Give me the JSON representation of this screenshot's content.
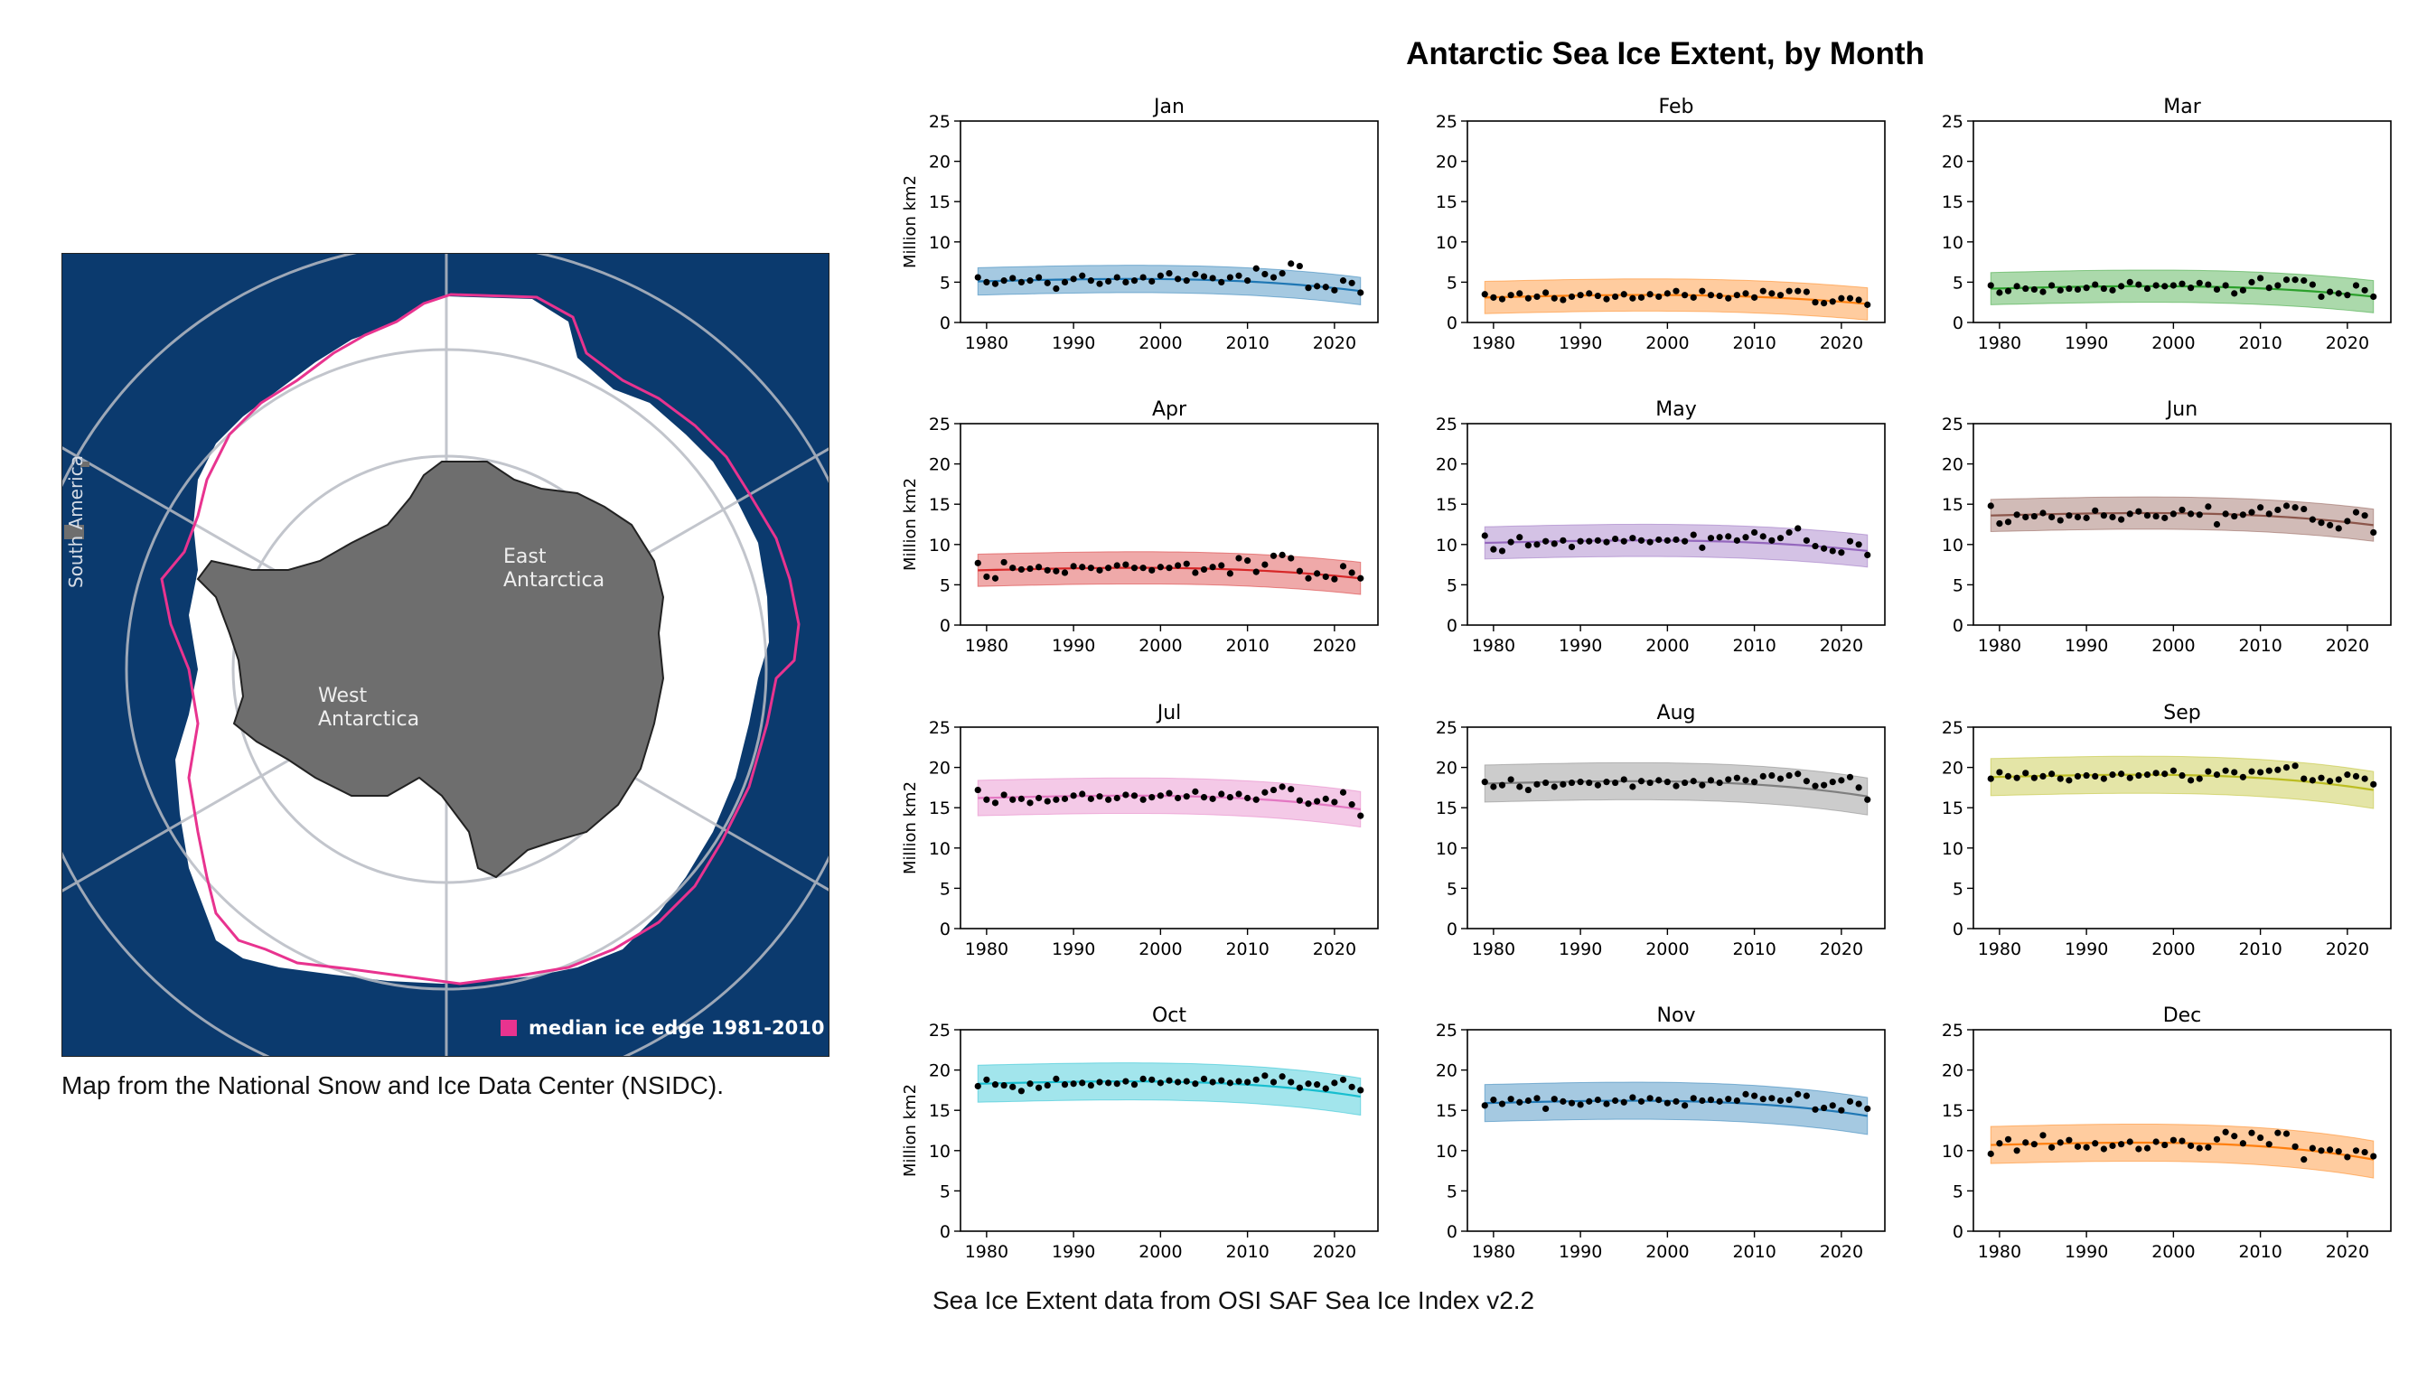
{
  "figure": {
    "title": "Antarctic Sea Ice Extent, by Month",
    "source_caption": "Sea Ice Extent data from OSI SAF Sea Ice Index v2.2"
  },
  "map": {
    "caption": "Map from the National Snow and Ice Data Center (NSIDC).",
    "labels": {
      "south_america": "South America",
      "east_1": "East",
      "east_2": "Antarctica",
      "west_1": "West",
      "west_2": "Antarctica"
    },
    "legend": "median ice edge 1981-2010",
    "colors": {
      "ocean": "#0b3a6e",
      "ice": "#ffffff",
      "land": "#6e6e6e",
      "median_edge": "#e8338f",
      "grid": "#b8bcc4"
    }
  },
  "chart_data": {
    "type": "scatter",
    "layout": "4x3 small multiples with trend line and shaded band",
    "ylabel": "Million km2",
    "ylim": [
      0,
      25
    ],
    "yticks": [
      0,
      5,
      10,
      15,
      20,
      25
    ],
    "xlim": [
      1977,
      2025
    ],
    "xticks": [
      1980,
      1990,
      2000,
      2010,
      2020
    ],
    "x_start": 1979,
    "x_end": 2023,
    "panels": [
      {
        "month": "Jan",
        "color": "#1f77b4",
        "base": 5.1,
        "band": 1.7,
        "endDrop": 1.2,
        "values": [
          5.6,
          5.0,
          4.8,
          5.2,
          5.5,
          5.0,
          5.2,
          5.6,
          4.9,
          4.2,
          5.0,
          5.4,
          5.8,
          5.2,
          4.8,
          5.1,
          5.6,
          5.0,
          5.2,
          5.6,
          5.1,
          5.8,
          6.1,
          5.4,
          5.2,
          6.0,
          5.7,
          5.5,
          5.0,
          5.6,
          5.8,
          5.2,
          6.7,
          6.0,
          5.6,
          6.1,
          7.3,
          7.0,
          4.3,
          4.5,
          4.4,
          4.0,
          5.2,
          4.9,
          3.7
        ]
      },
      {
        "month": "Feb",
        "color": "#ff7f0e",
        "base": 3.1,
        "band": 2.0,
        "endDrop": 0.8,
        "values": [
          3.5,
          3.1,
          2.9,
          3.4,
          3.6,
          3.0,
          3.2,
          3.7,
          3.0,
          2.8,
          3.2,
          3.4,
          3.6,
          3.3,
          2.9,
          3.2,
          3.5,
          3.0,
          3.1,
          3.5,
          3.2,
          3.6,
          3.9,
          3.4,
          3.1,
          3.9,
          3.4,
          3.3,
          3.0,
          3.4,
          3.6,
          3.1,
          3.9,
          3.6,
          3.4,
          3.9,
          3.9,
          3.8,
          2.5,
          2.4,
          2.6,
          3.0,
          3.0,
          2.8,
          2.2
        ]
      },
      {
        "month": "Mar",
        "color": "#2ca02c",
        "base": 4.2,
        "band": 2.0,
        "endDrop": 1.0,
        "values": [
          4.6,
          3.7,
          3.9,
          4.5,
          4.2,
          4.1,
          3.8,
          4.6,
          4.0,
          4.2,
          4.1,
          4.3,
          4.7,
          4.2,
          4.0,
          4.5,
          5.0,
          4.7,
          4.2,
          4.6,
          4.5,
          4.6,
          4.8,
          4.3,
          4.9,
          4.7,
          4.1,
          4.6,
          3.6,
          4.0,
          5.0,
          5.5,
          4.3,
          4.6,
          5.3,
          5.3,
          5.2,
          4.7,
          3.2,
          3.8,
          3.6,
          3.4,
          4.6,
          4.0,
          3.2
        ]
      },
      {
        "month": "Apr",
        "color": "#d62728",
        "base": 6.8,
        "band": 2.0,
        "endDrop": 1.0,
        "values": [
          7.7,
          6.0,
          5.8,
          7.8,
          7.1,
          6.9,
          7.0,
          7.2,
          6.8,
          6.7,
          6.5,
          7.3,
          7.2,
          7.1,
          6.8,
          7.1,
          7.4,
          7.5,
          7.1,
          7.1,
          6.8,
          7.2,
          7.1,
          7.4,
          7.6,
          6.5,
          6.9,
          7.2,
          7.4,
          6.4,
          8.3,
          8.0,
          6.6,
          7.5,
          8.6,
          8.7,
          8.3,
          6.7,
          5.8,
          6.4,
          6.0,
          5.7,
          7.3,
          6.5,
          5.8
        ]
      },
      {
        "month": "May",
        "color": "#9467bd",
        "base": 10.2,
        "band": 2.0,
        "endDrop": 1.0,
        "values": [
          11.1,
          9.4,
          9.2,
          10.3,
          10.9,
          9.9,
          10.0,
          10.4,
          10.1,
          10.5,
          9.7,
          10.4,
          10.4,
          10.5,
          10.3,
          10.7,
          10.4,
          10.8,
          10.5,
          10.3,
          10.6,
          10.5,
          10.6,
          10.4,
          11.2,
          9.6,
          10.8,
          10.9,
          11.0,
          10.5,
          10.9,
          11.5,
          11.0,
          10.5,
          10.8,
          11.5,
          12.0,
          10.5,
          9.8,
          9.5,
          9.2,
          9.0,
          10.4,
          10.0,
          8.7
        ]
      },
      {
        "month": "Jun",
        "color": "#8c564b",
        "base": 13.6,
        "band": 2.0,
        "endDrop": 1.2,
        "values": [
          14.8,
          12.6,
          12.8,
          13.7,
          13.4,
          13.5,
          13.9,
          13.4,
          13.0,
          13.6,
          13.4,
          13.3,
          14.2,
          13.6,
          13.4,
          13.1,
          13.8,
          14.1,
          13.6,
          13.5,
          13.3,
          13.8,
          14.3,
          13.8,
          13.7,
          14.7,
          12.5,
          13.8,
          13.5,
          13.7,
          14.0,
          14.6,
          13.8,
          14.3,
          14.8,
          14.6,
          14.4,
          13.1,
          12.7,
          12.4,
          12.0,
          12.9,
          14.0,
          13.6,
          11.5
        ]
      },
      {
        "month": "Jul",
        "color": "#e377c2",
        "base": 16.2,
        "band": 2.2,
        "endDrop": 1.4,
        "values": [
          17.2,
          16.0,
          15.6,
          16.6,
          16.0,
          16.1,
          15.6,
          16.2,
          15.8,
          16.0,
          16.1,
          16.5,
          16.7,
          16.1,
          16.4,
          16.0,
          16.2,
          16.6,
          16.5,
          16.0,
          16.3,
          16.5,
          16.8,
          16.2,
          16.4,
          17.0,
          16.3,
          16.1,
          16.7,
          16.3,
          16.7,
          16.2,
          16.0,
          16.9,
          17.2,
          17.6,
          17.3,
          15.9,
          15.5,
          15.8,
          16.1,
          15.7,
          16.9,
          15.4,
          14.0
        ]
      },
      {
        "month": "Aug",
        "color": "#7f7f7f",
        "base": 18.0,
        "band": 2.3,
        "endDrop": 1.6,
        "values": [
          18.2,
          17.6,
          17.8,
          18.5,
          17.6,
          17.2,
          17.9,
          18.1,
          17.6,
          17.9,
          18.1,
          18.2,
          18.1,
          17.8,
          18.2,
          18.1,
          18.5,
          17.6,
          18.3,
          18.1,
          18.4,
          18.2,
          17.7,
          18.1,
          18.3,
          17.8,
          18.4,
          18.1,
          18.5,
          18.7,
          18.4,
          18.2,
          18.9,
          19.0,
          18.6,
          19.0,
          19.2,
          18.3,
          17.7,
          17.8,
          18.2,
          18.4,
          18.8,
          17.5,
          16.0
        ]
      },
      {
        "month": "Sep",
        "color": "#bcbd22",
        "base": 18.8,
        "band": 2.3,
        "endDrop": 1.6,
        "values": [
          18.6,
          19.4,
          18.9,
          18.7,
          19.3,
          18.7,
          18.9,
          19.2,
          18.6,
          18.4,
          18.9,
          19.0,
          18.9,
          18.6,
          19.1,
          19.2,
          18.7,
          19.0,
          19.1,
          19.3,
          19.2,
          19.6,
          19.0,
          18.4,
          18.6,
          19.5,
          19.1,
          19.6,
          19.4,
          18.8,
          19.5,
          19.4,
          19.6,
          19.7,
          20.0,
          20.2,
          18.6,
          18.4,
          18.7,
          18.3,
          18.5,
          19.1,
          18.9,
          18.6,
          17.9
        ]
      },
      {
        "month": "Oct",
        "color": "#17becf",
        "base": 18.3,
        "band": 2.3,
        "endDrop": 1.6,
        "values": [
          18.0,
          18.8,
          18.2,
          18.1,
          17.9,
          17.4,
          18.3,
          17.8,
          18.1,
          18.9,
          18.2,
          18.3,
          18.4,
          18.1,
          18.5,
          18.4,
          18.3,
          18.6,
          18.2,
          18.9,
          18.8,
          18.4,
          18.7,
          18.5,
          18.6,
          18.3,
          18.9,
          18.5,
          18.7,
          18.4,
          18.6,
          18.5,
          18.8,
          19.3,
          18.5,
          19.2,
          18.5,
          17.8,
          18.3,
          18.2,
          17.7,
          18.4,
          18.8,
          17.9,
          17.5
        ]
      },
      {
        "month": "Nov",
        "color": "#1f77b4",
        "base": 15.9,
        "band": 2.3,
        "endDrop": 1.6,
        "values": [
          15.6,
          16.3,
          15.8,
          16.4,
          16.0,
          16.2,
          16.5,
          15.2,
          16.4,
          16.1,
          15.9,
          15.7,
          16.1,
          16.3,
          15.8,
          16.2,
          16.0,
          16.6,
          16.1,
          16.5,
          16.3,
          15.9,
          16.1,
          15.6,
          16.5,
          16.2,
          16.3,
          16.1,
          16.4,
          16.2,
          17.0,
          16.8,
          16.4,
          16.5,
          16.2,
          16.3,
          17.0,
          16.8,
          15.1,
          15.3,
          15.6,
          15.0,
          16.1,
          15.8,
          15.2
        ]
      },
      {
        "month": "Dec",
        "color": "#ff7f0e",
        "base": 10.7,
        "band": 2.3,
        "endDrop": 1.8,
        "values": [
          9.6,
          10.9,
          11.4,
          10.0,
          11.0,
          10.8,
          11.9,
          10.4,
          11.0,
          11.3,
          10.5,
          10.4,
          10.9,
          10.2,
          10.6,
          10.8,
          11.1,
          10.2,
          10.3,
          11.1,
          10.7,
          11.3,
          11.2,
          10.6,
          10.3,
          10.4,
          11.4,
          12.3,
          11.8,
          10.9,
          12.2,
          11.6,
          10.8,
          12.2,
          12.1,
          10.5,
          8.9,
          10.3,
          10.0,
          10.1,
          9.9,
          9.2,
          10.0,
          9.8,
          9.3
        ]
      }
    ]
  }
}
